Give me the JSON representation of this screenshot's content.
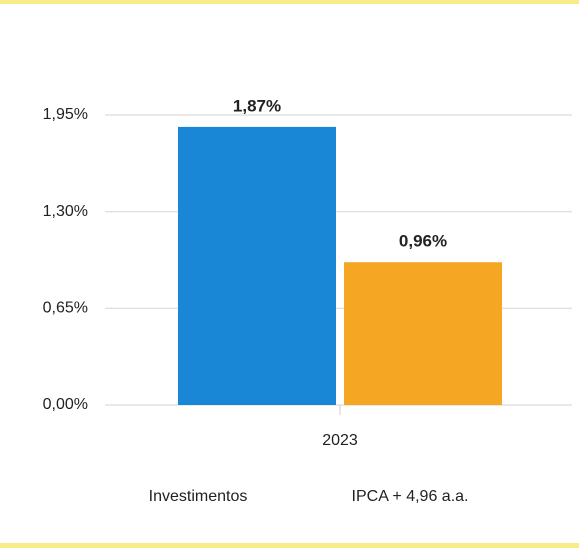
{
  "chart_data": {
    "type": "bar",
    "categories": [
      "2023"
    ],
    "series": [
      {
        "name": "Investimentos",
        "color": "#1a87d6",
        "values": [
          1.87
        ],
        "value_labels": [
          "1,87%"
        ]
      },
      {
        "name": "IPCA + 4,96 a.a.",
        "color": "#f5a623",
        "values": [
          0.96
        ],
        "value_labels": [
          "0,96%"
        ]
      }
    ],
    "ylim": [
      0,
      1.95
    ],
    "yticks": [
      {
        "value": 0,
        "label": "0,00%"
      },
      {
        "value": 0.65,
        "label": "0,65%"
      },
      {
        "value": 1.3,
        "label": "1,30%"
      },
      {
        "value": 1.95,
        "label": "1,95%"
      }
    ],
    "grid": true
  }
}
